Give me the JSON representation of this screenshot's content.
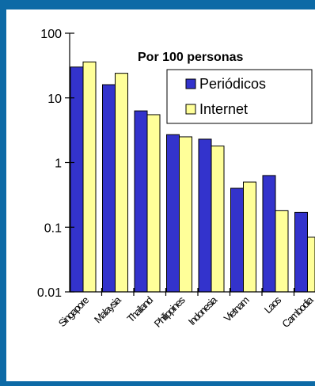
{
  "chart_data": {
    "type": "bar",
    "y_scale": "log",
    "ylim": [
      0.01,
      100
    ],
    "y_ticks": [
      {
        "value": 100,
        "label": "100"
      },
      {
        "value": 10,
        "label": "10"
      },
      {
        "value": 1,
        "label": "1"
      },
      {
        "value": 0.1,
        "label": "0.1"
      },
      {
        "value": 0.01,
        "label": "0.01"
      }
    ],
    "categories": [
      "Singapore",
      "Malaysia",
      "Thailand",
      "Philippines",
      "Indonesia",
      "Vietnam",
      "Laos",
      "Cambodia"
    ],
    "legend_title": "Por 100 personas",
    "legend_position": "top-right",
    "series": [
      {
        "name": "Periódicos",
        "color": "#3333cc",
        "values": [
          30,
          16,
          6.3,
          2.7,
          2.3,
          0.4,
          0.63,
          0.17
        ]
      },
      {
        "name": "Internet",
        "color": "#ffff99",
        "values": [
          36,
          24,
          5.5,
          2.5,
          1.8,
          0.5,
          0.18,
          0.07
        ]
      }
    ],
    "grid": false
  }
}
